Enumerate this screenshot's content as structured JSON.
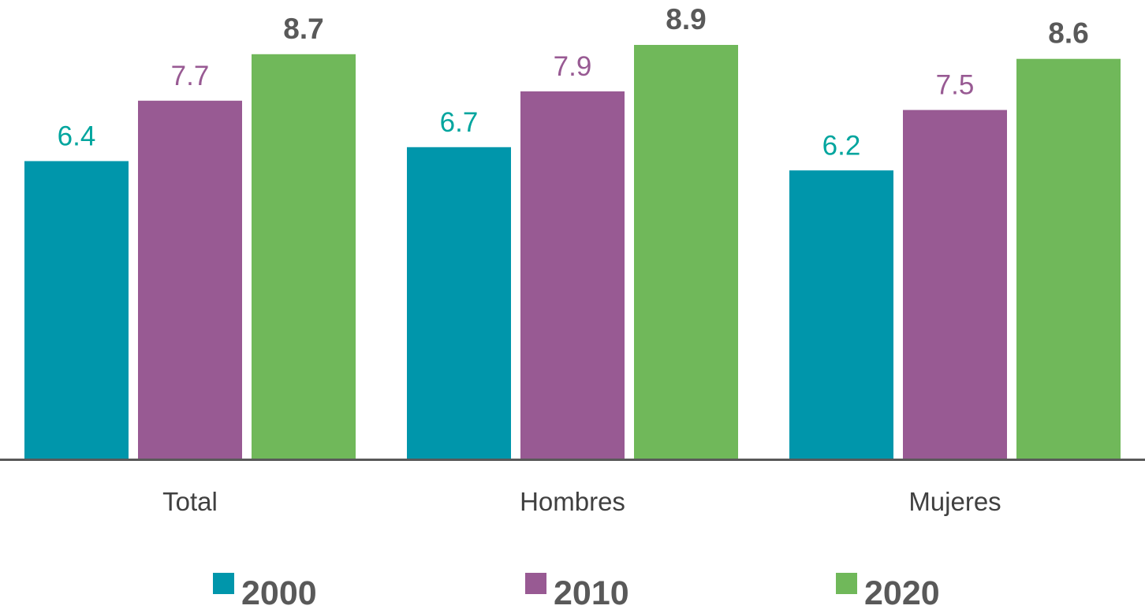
{
  "chart_data": {
    "type": "bar",
    "title": "",
    "xlabel": "",
    "ylabel": "",
    "ylim": [
      0,
      8.9
    ],
    "grid": false,
    "legend_position": "bottom",
    "categories": [
      "Total",
      "Hombres",
      "Mujeres"
    ],
    "series": [
      {
        "name": "2000",
        "values": [
          6.4,
          6.7,
          6.2
        ],
        "color": "#0096AB",
        "label_color": "#00A59E",
        "label_bold": false
      },
      {
        "name": "2010",
        "values": [
          7.7,
          7.9,
          7.5
        ],
        "color": "#985A93",
        "label_color": "#985A93",
        "label_bold": false
      },
      {
        "name": "2020",
        "values": [
          8.7,
          8.9,
          8.6
        ],
        "color": "#70B85A",
        "label_color": "#595959",
        "label_bold": true
      }
    ],
    "axis_color": "#595959",
    "category_label_color": "#404040",
    "legend_text_color": "#595959"
  }
}
